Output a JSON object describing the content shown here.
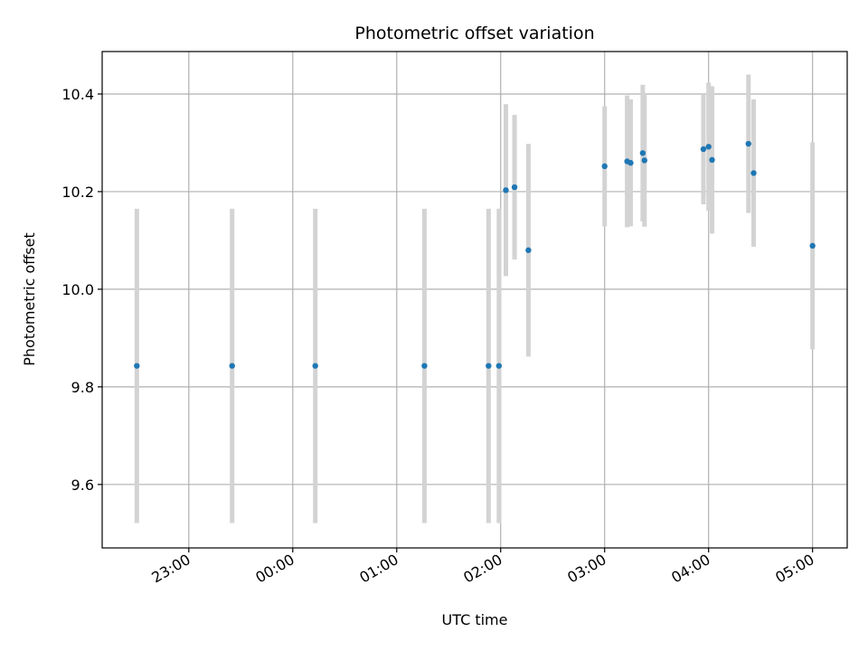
{
  "chart_data": {
    "type": "scatter",
    "title": "Photometric offset variation",
    "xlabel": "UTC time",
    "ylabel": "Photometric offset",
    "grid": true,
    "xlim": [
      "22:10",
      "05:20"
    ],
    "ylim": [
      9.47,
      10.487
    ],
    "x_ticks": [
      "23:00",
      "00:00",
      "01:00",
      "02:00",
      "03:00",
      "04:00",
      "05:00"
    ],
    "y_ticks": [
      "9.6",
      "9.8",
      "10.0",
      "10.2",
      "10.4"
    ],
    "colors": {
      "point": "#1f77b4",
      "errorbar": "#d3d3d3",
      "grid": "#b0b0b0"
    },
    "points": [
      {
        "time": "22:30",
        "y": 9.843,
        "yerr": 0.322
      },
      {
        "time": "23:25",
        "y": 9.843,
        "yerr": 0.322
      },
      {
        "time": "00:13",
        "y": 9.843,
        "yerr": 0.322
      },
      {
        "time": "01:16",
        "y": 9.843,
        "yerr": 0.322
      },
      {
        "time": "01:53",
        "y": 9.843,
        "yerr": 0.322
      },
      {
        "time": "01:59",
        "y": 9.843,
        "yerr": 0.322
      },
      {
        "time": "02:03",
        "y": 10.203,
        "yerr": 0.176
      },
      {
        "time": "02:08",
        "y": 10.209,
        "yerr": 0.148
      },
      {
        "time": "02:16",
        "y": 10.08,
        "yerr": 0.218
      },
      {
        "time": "03:00",
        "y": 10.252,
        "yerr": 0.123
      },
      {
        "time": "03:13",
        "y": 10.262,
        "yerr": 0.135
      },
      {
        "time": "03:15",
        "y": 10.259,
        "yerr": 0.13
      },
      {
        "time": "03:22",
        "y": 10.279,
        "yerr": 0.14
      },
      {
        "time": "03:23",
        "y": 10.264,
        "yerr": 0.136
      },
      {
        "time": "03:57",
        "y": 10.287,
        "yerr": 0.113
      },
      {
        "time": "04:00",
        "y": 10.292,
        "yerr": 0.131
      },
      {
        "time": "04:02",
        "y": 10.265,
        "yerr": 0.151
      },
      {
        "time": "04:23",
        "y": 10.298,
        "yerr": 0.142
      },
      {
        "time": "04:26",
        "y": 10.238,
        "yerr": 0.151
      },
      {
        "time": "05:00",
        "y": 10.089,
        "yerr": 0.212
      }
    ]
  }
}
